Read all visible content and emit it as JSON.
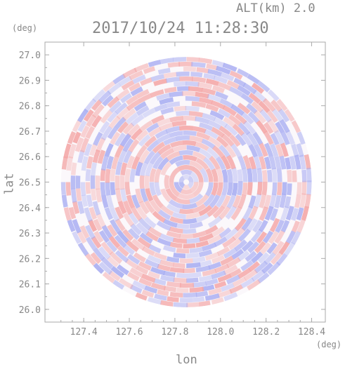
{
  "header": {
    "altitude": "ALT(km) 2.0",
    "timestamp": "2017/10/24 11:28:30"
  },
  "chart_data": {
    "type": "heatmap",
    "title": "2017/10/24 11:28:30",
    "subtitle": "ALT(km) 2.0",
    "xlabel": "lon",
    "ylabel": "lat",
    "x_unit": "(deg)",
    "y_unit": "(deg)",
    "xlim": [
      127.23,
      128.46
    ],
    "ylim": [
      25.95,
      27.05
    ],
    "x_ticks": [
      "127.4",
      "127.6",
      "127.8",
      "128.0",
      "128.2",
      "128.4"
    ],
    "y_ticks": [
      "26.0",
      "26.1",
      "26.2",
      "26.3",
      "26.4",
      "26.5",
      "26.6",
      "26.7",
      "26.8",
      "26.9",
      "27.0"
    ],
    "colors": {
      "positive": "#f4a6a6",
      "negative": "#a9aef2",
      "axis": "#888888",
      "frame": "#aaaaaa"
    },
    "field": {
      "shape": "disc",
      "center_lon": 127.85,
      "center_lat": 26.5,
      "radius_deg": 0.55
    }
  }
}
